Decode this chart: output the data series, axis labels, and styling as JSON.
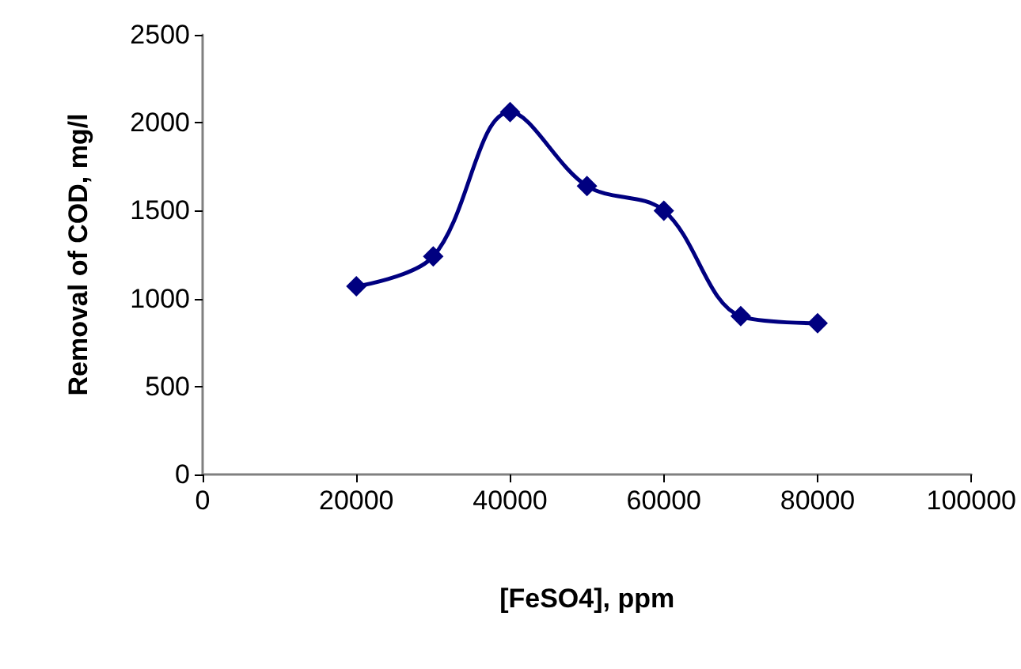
{
  "chart_data": {
    "type": "line",
    "xlabel": "[FeSO4], ppm",
    "ylabel": "Removal of COD, mg/l",
    "x": [
      20000,
      30000,
      40000,
      50000,
      60000,
      70000,
      80000
    ],
    "series": [
      {
        "color": "#000080",
        "values": [
          1070,
          1240,
          2060,
          1640,
          1500,
          900,
          860
        ]
      }
    ],
    "xlim": [
      0,
      100000
    ],
    "xticks": [
      0,
      20000,
      40000,
      60000,
      80000,
      100000
    ],
    "ylim": [
      0,
      2500
    ],
    "yticks": [
      0,
      500,
      1000,
      1500,
      2000,
      2500
    ],
    "grid": false,
    "marker": "diamond",
    "line_style": "solid"
  }
}
